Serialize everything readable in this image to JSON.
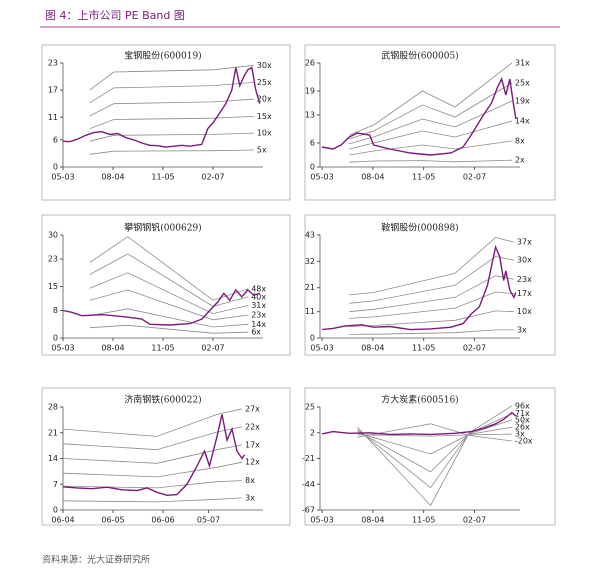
{
  "title": "图 4：上市公司 PE Band 图",
  "source": "资料来源：光大证券研究所",
  "chart_data": [
    {
      "type": "line",
      "title": "宝钢股份(600019)",
      "xlim": [
        2003.33,
        2008.33
      ],
      "ylim": [
        0,
        23
      ],
      "yticks": [
        0,
        6,
        11,
        17,
        23
      ],
      "xticks": [
        {
          "value": 2003.33,
          "label": "05-03"
        },
        {
          "value": 2004.58,
          "label": "08-04"
        },
        {
          "value": 2005.83,
          "label": "11-05"
        },
        {
          "value": 2007.08,
          "label": "02-07"
        }
      ],
      "series": [
        {
          "color": "#7a1a7a",
          "x": [
            2003.33,
            2003.5,
            2003.7,
            2003.9,
            2004.1,
            2004.3,
            2004.5,
            2004.7,
            2004.9,
            2005.1,
            2005.3,
            2005.5,
            2005.7,
            2005.9,
            2006.1,
            2006.3,
            2006.5,
            2006.8,
            2006.95,
            2007.1,
            2007.25,
            2007.4,
            2007.55,
            2007.65,
            2007.75,
            2007.85,
            2007.95,
            2008.05,
            2008.15,
            2008.25
          ],
          "values": [
            5.7,
            5.6,
            6.2,
            7.0,
            7.6,
            7.8,
            7.2,
            7.4,
            6.5,
            6.0,
            5.3,
            4.8,
            4.7,
            4.4,
            4.6,
            4.8,
            4.6,
            5.0,
            8.5,
            10,
            12,
            14,
            17,
            22,
            18,
            20,
            21.5,
            22,
            17,
            14
          ]
        },
        {
          "name": "30x",
          "color": "#8c8c8c",
          "x": [
            2004.0,
            2004.6,
            2007.08,
            2008.1
          ],
          "values": [
            17,
            21,
            21.5,
            22.5
          ]
        },
        {
          "name": "25x",
          "color": "#8c8c8c",
          "x": [
            2004.0,
            2004.6,
            2007.08,
            2008.1
          ],
          "values": [
            14.2,
            17.5,
            18,
            18.7
          ]
        },
        {
          "name": "20x",
          "color": "#8c8c8c",
          "x": [
            2004.0,
            2004.6,
            2007.08,
            2008.1
          ],
          "values": [
            11.3,
            14,
            14.4,
            15
          ]
        },
        {
          "name": "15x",
          "color": "#8c8c8c",
          "x": [
            2004.0,
            2004.6,
            2007.08,
            2008.1
          ],
          "values": [
            8.5,
            10.5,
            10.8,
            11.2
          ]
        },
        {
          "name": "10x",
          "color": "#8c8c8c",
          "x": [
            2004.0,
            2004.6,
            2007.08,
            2008.1
          ],
          "values": [
            5.7,
            7,
            7.2,
            7.5
          ]
        },
        {
          "name": "5x",
          "color": "#8c8c8c",
          "x": [
            2004.0,
            2004.6,
            2007.08,
            2008.1
          ],
          "values": [
            2.8,
            3.5,
            3.6,
            3.75
          ]
        }
      ]
    },
    {
      "type": "line",
      "title": "武钢股份(600005)",
      "xlim": [
        2003.28,
        2008.2
      ],
      "ylim": [
        0,
        26
      ],
      "yticks": [
        0,
        6,
        13,
        19,
        26
      ],
      "xticks": [
        {
          "value": 2003.33,
          "label": "05-03"
        },
        {
          "value": 2004.58,
          "label": "08-04"
        },
        {
          "value": 2005.83,
          "label": "11-05"
        },
        {
          "value": 2007.08,
          "label": "02-07"
        }
      ],
      "series": [
        {
          "color": "#7a1a7a",
          "x": [
            2003.33,
            2003.6,
            2003.8,
            2004.0,
            2004.2,
            2004.5,
            2004.6,
            2005.0,
            2005.5,
            2006.0,
            2006.5,
            2006.8,
            2007.0,
            2007.3,
            2007.5,
            2007.65,
            2007.75,
            2007.85,
            2007.95,
            2008.05,
            2008.1
          ],
          "values": [
            5,
            4.5,
            5.5,
            7.5,
            8.5,
            8,
            5.5,
            4.5,
            3.5,
            3,
            3.5,
            5,
            8,
            13,
            16,
            20,
            22,
            18,
            22,
            15,
            12
          ]
        },
        {
          "name": "31x",
          "color": "#8c8c8c",
          "x": [
            2004.0,
            2004.6,
            2005.8,
            2006.6,
            2008.0
          ],
          "values": [
            8,
            10.5,
            19,
            15,
            26
          ]
        },
        {
          "name": "25x",
          "color": "#8c8c8c",
          "x": [
            2004.0,
            2004.6,
            2005.8,
            2006.6,
            2008.0
          ],
          "values": [
            7,
            9,
            15.5,
            12.5,
            21
          ]
        },
        {
          "name": "19x",
          "color": "#8c8c8c",
          "x": [
            2004.0,
            2004.6,
            2005.8,
            2006.6,
            2008.0
          ],
          "values": [
            5.8,
            7.5,
            12,
            10,
            16.5
          ]
        },
        {
          "name": "14x",
          "color": "#8c8c8c",
          "x": [
            2004.0,
            2004.6,
            2005.8,
            2006.6,
            2008.0
          ],
          "values": [
            4.5,
            6,
            9,
            7.5,
            11.5
          ]
        },
        {
          "name": "8x",
          "color": "#8c8c8c",
          "x": [
            2004.0,
            2004.6,
            2005.8,
            2006.6,
            2008.0
          ],
          "values": [
            3,
            4,
            5.5,
            4.5,
            6.5
          ]
        },
        {
          "name": "2x",
          "color": "#8c8c8c",
          "x": [
            2004.0,
            2004.6,
            2005.8,
            2006.6,
            2008.0
          ],
          "values": [
            1.2,
            1.5,
            1.6,
            1.3,
            1.7
          ]
        }
      ]
    },
    {
      "type": "line",
      "title": "攀钢钢钒(000629)",
      "xlim": [
        2003.33,
        2008.33
      ],
      "ylim": [
        0,
        30
      ],
      "yticks": [
        0,
        8,
        15,
        23,
        30
      ],
      "xticks": [
        {
          "value": 2003.33,
          "label": "05-03"
        },
        {
          "value": 2004.58,
          "label": "08-04"
        },
        {
          "value": 2005.83,
          "label": "11-05"
        },
        {
          "value": 2007.08,
          "label": "02-07"
        }
      ],
      "series": [
        {
          "color": "#7a1a7a",
          "x": [
            2003.33,
            2003.55,
            2003.8,
            2004.3,
            2004.6,
            2005.0,
            2005.3,
            2005.5,
            2006.0,
            2006.5,
            2006.8,
            2007.0,
            2007.2,
            2007.35,
            2007.5,
            2007.65,
            2007.8,
            2007.95,
            2008.1,
            2008.25
          ],
          "values": [
            8,
            7.5,
            6.5,
            6.8,
            6.5,
            6,
            5.5,
            4,
            3.8,
            4.2,
            5.5,
            8,
            10.5,
            13,
            11,
            14,
            12,
            14,
            12.5,
            13
          ]
        },
        {
          "name": "48x",
          "color": "#8c8c8c",
          "x": [
            2004.0,
            2004.95,
            2007.08,
            2007.96
          ],
          "values": [
            22,
            29.5,
            11,
            14.3
          ]
        },
        {
          "name": "40x",
          "color": "#8c8c8c",
          "x": [
            2004.0,
            2004.95,
            2007.08,
            2007.96
          ],
          "values": [
            18.5,
            24.5,
            9.2,
            12
          ]
        },
        {
          "name": "31x",
          "color": "#8c8c8c",
          "x": [
            2004.0,
            2004.95,
            2007.08,
            2007.96
          ],
          "values": [
            14.5,
            19,
            7.1,
            9.5
          ]
        },
        {
          "name": "23x",
          "color": "#8c8c8c",
          "x": [
            2004.0,
            2004.95,
            2007.08,
            2007.96
          ],
          "values": [
            11,
            14,
            5.3,
            6.7
          ]
        },
        {
          "name": "14x",
          "color": "#8c8c8c",
          "x": [
            2004.0,
            2004.95,
            2007.08,
            2007.96
          ],
          "values": [
            6.5,
            8.5,
            3.2,
            4
          ]
        },
        {
          "name": "6x",
          "color": "#8c8c8c",
          "x": [
            2004.0,
            2004.95,
            2007.08,
            2007.96
          ],
          "values": [
            3,
            3.7,
            1.4,
            1.7
          ]
        }
      ]
    },
    {
      "type": "line",
      "title": "鞍钢股份(000898)",
      "xlim": [
        2003.28,
        2008.2
      ],
      "ylim": [
        0,
        43
      ],
      "yticks": [
        0,
        11,
        21,
        32,
        43
      ],
      "xticks": [
        {
          "value": 2003.33,
          "label": "05-03"
        },
        {
          "value": 2004.58,
          "label": "08-04"
        },
        {
          "value": 2005.83,
          "label": "11-05"
        },
        {
          "value": 2007.08,
          "label": "02-07"
        }
      ],
      "series": [
        {
          "color": "#7a1a7a",
          "x": [
            2003.33,
            2003.6,
            2003.9,
            2004.3,
            2004.6,
            2005.0,
            2005.5,
            2006.0,
            2006.5,
            2006.8,
            2007.0,
            2007.2,
            2007.4,
            2007.5,
            2007.6,
            2007.7,
            2007.8,
            2007.85,
            2007.95,
            2008.05,
            2008.1
          ],
          "values": [
            3.5,
            4,
            5,
            5.5,
            4.5,
            4.8,
            3.5,
            3.8,
            4.5,
            6,
            10,
            13,
            22,
            30,
            38,
            34,
            24,
            28,
            20,
            17,
            19
          ]
        },
        {
          "name": "37x",
          "color": "#8c8c8c",
          "x": [
            2004.0,
            2004.6,
            2006.6,
            2007.6,
            2008.05
          ],
          "values": [
            18,
            19,
            27,
            42,
            40
          ]
        },
        {
          "name": "30x",
          "color": "#8c8c8c",
          "x": [
            2004.0,
            2004.6,
            2006.6,
            2007.6,
            2008.05
          ],
          "values": [
            14.5,
            15.5,
            22,
            34,
            32.5
          ]
        },
        {
          "name": "23x",
          "color": "#8c8c8c",
          "x": [
            2004.0,
            2004.6,
            2006.6,
            2007.6,
            2008.05
          ],
          "values": [
            11,
            12,
            17,
            26,
            24.5
          ]
        },
        {
          "name": "17x",
          "color": "#8c8c8c",
          "x": [
            2004.0,
            2004.6,
            2006.6,
            2007.6,
            2008.05
          ],
          "values": [
            8.2,
            8.8,
            12.5,
            19.2,
            18.5
          ]
        },
        {
          "name": "10x",
          "color": "#8c8c8c",
          "x": [
            2004.0,
            2004.6,
            2006.6,
            2007.6,
            2008.05
          ],
          "values": [
            4.8,
            5.2,
            7.4,
            11.3,
            11
          ]
        },
        {
          "name": "3x",
          "color": "#8c8c8c",
          "x": [
            2004.0,
            2004.6,
            2006.6,
            2007.6,
            2008.05
          ],
          "values": [
            1.5,
            1.6,
            2.2,
            3.4,
            3.4
          ]
        }
      ]
    },
    {
      "type": "line",
      "title": "济南钢铁(600022)",
      "xlim": [
        2004.42,
        2008.42
      ],
      "ylim": [
        0,
        28
      ],
      "yticks": [
        0,
        7,
        14,
        21,
        28
      ],
      "xticks": [
        {
          "value": 2004.42,
          "label": "06-04"
        },
        {
          "value": 2005.42,
          "label": "06-05"
        },
        {
          "value": 2006.42,
          "label": "06-06"
        },
        {
          "value": 2007.33,
          "label": "05-07"
        }
      ],
      "series": [
        {
          "color": "#7a1a7a",
          "x": [
            2004.42,
            2004.7,
            2005.0,
            2005.3,
            2005.6,
            2005.9,
            2006.1,
            2006.3,
            2006.5,
            2006.7,
            2006.9,
            2007.1,
            2007.25,
            2007.35,
            2007.5,
            2007.6,
            2007.7,
            2007.8,
            2007.9,
            2008.0,
            2008.05
          ],
          "values": [
            6.3,
            6,
            5.8,
            6.2,
            5.5,
            5.3,
            6,
            4.8,
            4,
            4.2,
            7,
            12,
            16,
            12,
            20,
            26,
            19,
            22,
            16,
            14,
            15
          ]
        },
        {
          "name": "27x",
          "color": "#8c8c8c",
          "x": [
            2004.42,
            2006.3,
            2007.5,
            2008.0
          ],
          "values": [
            22,
            20,
            26,
            27.5
          ]
        },
        {
          "name": "22x",
          "color": "#8c8c8c",
          "x": [
            2004.42,
            2006.3,
            2007.5,
            2008.0
          ],
          "values": [
            18,
            16.4,
            21.2,
            22.6
          ]
        },
        {
          "name": "17x",
          "color": "#8c8c8c",
          "x": [
            2004.42,
            2006.3,
            2007.5,
            2008.0
          ],
          "values": [
            14,
            12.7,
            16.4,
            17.7
          ]
        },
        {
          "name": "12x",
          "color": "#8c8c8c",
          "x": [
            2004.42,
            2006.3,
            2007.5,
            2008.0
          ],
          "values": [
            10,
            9,
            11.6,
            13
          ]
        },
        {
          "name": "8x",
          "color": "#8c8c8c",
          "x": [
            2004.42,
            2006.3,
            2007.5,
            2008.0
          ],
          "values": [
            6.5,
            6,
            7.7,
            8
          ]
        },
        {
          "name": "3x",
          "color": "#8c8c8c",
          "x": [
            2004.42,
            2006.3,
            2007.5,
            2008.0
          ],
          "values": [
            2.5,
            2.2,
            2.9,
            3.3
          ]
        }
      ]
    },
    {
      "type": "line",
      "title": "方大炭素(600516)",
      "xlim": [
        2003.28,
        2008.2
      ],
      "ylim": [
        -67,
        25
      ],
      "yticks": [
        -67,
        -44,
        -21,
        2,
        25
      ],
      "xticks": [
        {
          "value": 2003.33,
          "label": "05-03"
        },
        {
          "value": 2004.58,
          "label": "08-04"
        },
        {
          "value": 2005.83,
          "label": "11-05"
        },
        {
          "value": 2007.08,
          "label": "02-07"
        }
      ],
      "series": [
        {
          "color": "#7a1a7a",
          "x": [
            2003.33,
            2003.6,
            2004.0,
            2004.5,
            2005.0,
            2005.5,
            2006.0,
            2006.6,
            2007.0,
            2007.3,
            2007.6,
            2007.8,
            2008.0,
            2008.1
          ],
          "values": [
            1,
            3,
            1.5,
            2,
            0.5,
            1,
            0.5,
            1.5,
            3,
            6,
            10,
            14,
            20,
            17
          ]
        },
        {
          "name": "96x",
          "color": "#8c8c8c",
          "x": [
            2004.2,
            2006.0,
            2006.95,
            2008.0
          ],
          "values": [
            7,
            -63,
            2,
            26
          ]
        },
        {
          "name": "71x",
          "color": "#8c8c8c",
          "x": [
            2004.2,
            2006.0,
            2006.95,
            2008.0
          ],
          "values": [
            5,
            -47,
            1.5,
            19
          ]
        },
        {
          "name": "50x",
          "color": "#8c8c8c",
          "x": [
            2004.2,
            2006.0,
            2006.95,
            2008.0
          ],
          "values": [
            3.5,
            -33,
            1,
            13.5
          ]
        },
        {
          "name": "26x",
          "color": "#8c8c8c",
          "x": [
            2004.2,
            2006.0,
            2006.95,
            2008.0
          ],
          "values": [
            2,
            -17,
            0.5,
            7
          ]
        },
        {
          "name": "3x",
          "color": "#8c8c8c",
          "x": [
            2004.2,
            2006.0,
            2006.95,
            2008.0
          ],
          "values": [
            0.3,
            -1,
            0.05,
            0.8
          ]
        },
        {
          "name": "-20x",
          "color": "#8c8c8c",
          "x": [
            2004.2,
            2006.0,
            2006.95,
            2008.0
          ],
          "values": [
            -2,
            10,
            -0.4,
            -5.4
          ]
        }
      ]
    }
  ]
}
